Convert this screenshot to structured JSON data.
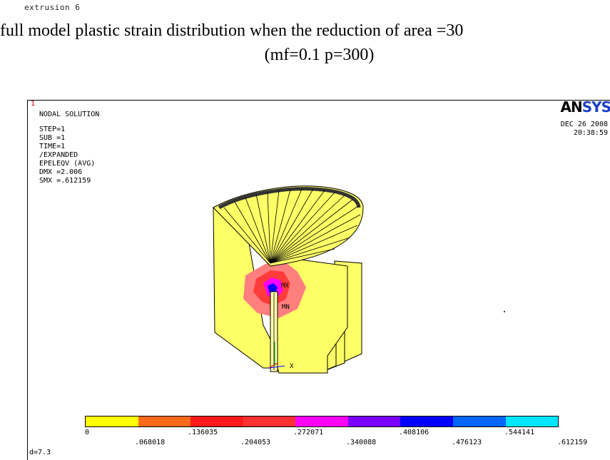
{
  "caption": "extrusion 6",
  "title": {
    "line1": "full model plastic strain distribution when the reduction of area =30",
    "line2": "(mf=0.1 p=300)"
  },
  "ansys_window": {
    "window_number": "1",
    "heading": "NODAL SOLUTION",
    "info_lines": [
      "STEP=1",
      "SUB =1",
      "TIME=1",
      "/EXPANDED",
      "EPELEQV   (AVG)",
      "DMX =2.006",
      "SMX =.612159"
    ],
    "logo_part1": "AN",
    "logo_part2": "SYS",
    "date": "DEC 26 2008",
    "time": "20:38:59",
    "mx_label": "MX",
    "mn_label": "MN",
    "axis_x_label": "X",
    "footer": "d=7.3",
    "colors": {
      "model_yellow": "#ffff66",
      "legend": [
        "#ffff00",
        "#ff6a1a",
        "#ff1a1a",
        "#ff3030",
        "#ff00ff",
        "#7a00ff",
        "#0000ff",
        "#0066ff",
        "#00e5ff"
      ]
    },
    "legend_upper_labels": [
      "0",
      ".136035",
      ".272071",
      ".408106",
      ".544141"
    ],
    "legend_lower_labels": [
      ".068018",
      ".204053",
      ".340088",
      ".476123",
      ".612159"
    ]
  }
}
